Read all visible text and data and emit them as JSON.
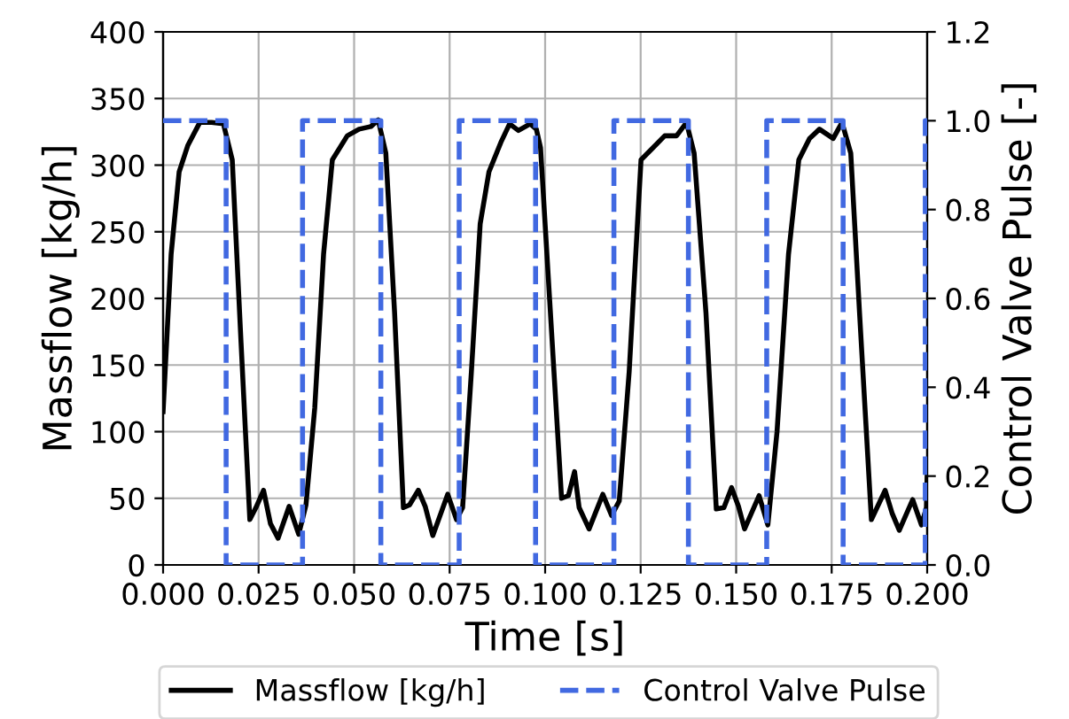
{
  "chart_data": {
    "type": "line",
    "xlabel": "Time [s]",
    "ylabel": "Massflow [kg/h]",
    "y2label": "Control Valve Pulse [-]",
    "xlim": [
      0,
      0.2
    ],
    "xticks": [
      {
        "value": 0,
        "label": "0.000"
      },
      {
        "value": 0.025,
        "label": "0.025"
      },
      {
        "value": 0.05,
        "label": "0.050"
      },
      {
        "value": 0.075,
        "label": "0.075"
      },
      {
        "value": 0.1,
        "label": "0.100"
      },
      {
        "value": 0.125,
        "label": "0.125"
      },
      {
        "value": 0.15,
        "label": "0.150"
      },
      {
        "value": 0.175,
        "label": "0.175"
      },
      {
        "value": 0.2,
        "label": "0.200"
      }
    ],
    "ylim": [
      0,
      400
    ],
    "yticks": [
      0,
      50,
      100,
      150,
      200,
      250,
      300,
      350,
      400
    ],
    "y2lim": [
      0,
      1.2
    ],
    "y2ticks": [
      {
        "value": 0,
        "label": "0.0"
      },
      0.2,
      0.4,
      0.6,
      0.8,
      {
        "value": 1,
        "label": "1.0"
      },
      1.2
    ],
    "grid": true,
    "legend": "bottom",
    "series": [
      {
        "name": "Massflow [kg/h]",
        "color": "#000000",
        "line_style": "solid",
        "x": [
          0,
          0.0021,
          0.0042,
          0.0065,
          0.0096,
          0.0127,
          0.0158,
          0.0181,
          0.0204,
          0.0227,
          0.0243,
          0.0263,
          0.0281,
          0.0301,
          0.033,
          0.0355,
          0.0374,
          0.0397,
          0.042,
          0.0443,
          0.0482,
          0.0513,
          0.0544,
          0.0563,
          0.0583,
          0.0606,
          0.0629,
          0.0645,
          0.0668,
          0.0686,
          0.0706,
          0.0745,
          0.0768,
          0.0784,
          0.0807,
          0.083,
          0.0853,
          0.0884,
          0.0907,
          0.093,
          0.0961,
          0.0977,
          0.0988,
          0.1012,
          0.1043,
          0.1061,
          0.1077,
          0.1089,
          0.1115,
          0.1151,
          0.1174,
          0.1194,
          0.122,
          0.1251,
          0.1282,
          0.1313,
          0.1344,
          0.137,
          0.139,
          0.1421,
          0.1448,
          0.1468,
          0.1488,
          0.1506,
          0.1522,
          0.156,
          0.1583,
          0.1607,
          0.1637,
          0.1664,
          0.1692,
          0.1718,
          0.1754,
          0.1777,
          0.18,
          0.1823,
          0.1854,
          0.189,
          0.1908,
          0.1927,
          0.1962,
          0.1985,
          0.1998,
          0.2
        ],
        "values": [
          115,
          233,
          295,
          315,
          332,
          332,
          331,
          304,
          167,
          34,
          43,
          56,
          31,
          20,
          44,
          23,
          45,
          118,
          233,
          304,
          322,
          327,
          329,
          334,
          309,
          189,
          43,
          45,
          56,
          44,
          22,
          53,
          34,
          43,
          145,
          256,
          295,
          317,
          331,
          326,
          331,
          327,
          313,
          198,
          50,
          52,
          70,
          43,
          27,
          53,
          37,
          48,
          145,
          304,
          313,
          322,
          322,
          332,
          309,
          189,
          42,
          43,
          58,
          44,
          27,
          52,
          30,
          100,
          233,
          304,
          320,
          327,
          320,
          332,
          309,
          189,
          34,
          56,
          39,
          26,
          49,
          30,
          43,
          70
        ]
      },
      {
        "name": "Control Valve Pulse",
        "type": "step",
        "axis": "y2",
        "color": "#4169e1",
        "line_style": "dashed",
        "x": [
          0,
          0.0165,
          0.0365,
          0.057,
          0.0775,
          0.0975,
          0.118,
          0.1375,
          0.158,
          0.178,
          0.1995,
          0.2
        ],
        "values": [
          1,
          0,
          1,
          0,
          1,
          0,
          1,
          0,
          1,
          0,
          1,
          1
        ]
      }
    ]
  }
}
